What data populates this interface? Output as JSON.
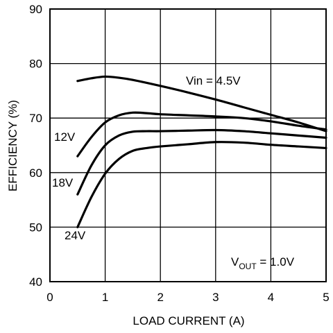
{
  "chart_data": {
    "type": "line",
    "xlabel": "LOAD CURRENT (A)",
    "ylabel": "EFFICIENCY (%)",
    "xlim": [
      0,
      5
    ],
    "ylim": [
      40,
      90
    ],
    "xticks": [
      0,
      1,
      2,
      3,
      4,
      5
    ],
    "yticks": [
      40,
      50,
      60,
      70,
      80,
      90
    ],
    "grid": true,
    "series": [
      {
        "name": "Vin = 4.5V",
        "x": [
          0.5,
          0.75,
          1.0,
          1.25,
          1.5,
          2.0,
          2.5,
          3.0,
          3.5,
          4.0,
          4.5,
          5.0
        ],
        "y": [
          76.8,
          77.3,
          77.6,
          77.4,
          77.0,
          75.9,
          74.7,
          73.4,
          72.0,
          70.6,
          69.2,
          67.6
        ]
      },
      {
        "name": "12V",
        "x": [
          0.5,
          0.75,
          1.0,
          1.25,
          1.5,
          1.75,
          2.0,
          2.5,
          3.0,
          3.5,
          4.0,
          4.5,
          5.0
        ],
        "y": [
          63.0,
          66.5,
          69.2,
          70.5,
          71.0,
          70.9,
          70.7,
          70.5,
          70.3,
          70.0,
          69.4,
          68.6,
          67.9
        ]
      },
      {
        "name": "18V",
        "x": [
          0.5,
          0.75,
          1.0,
          1.25,
          1.5,
          1.75,
          2.0,
          2.5,
          3.0,
          3.5,
          4.0,
          4.5,
          5.0
        ],
        "y": [
          56.0,
          61.3,
          65.0,
          66.8,
          67.5,
          67.6,
          67.6,
          67.7,
          67.8,
          67.6,
          67.2,
          66.8,
          66.4
        ]
      },
      {
        "name": "24V",
        "x": [
          0.5,
          0.75,
          1.0,
          1.25,
          1.5,
          1.75,
          2.0,
          2.5,
          3.0,
          3.5,
          4.0,
          4.5,
          5.0
        ],
        "y": [
          50.0,
          55.5,
          59.8,
          62.5,
          64.0,
          64.5,
          64.8,
          65.2,
          65.6,
          65.5,
          65.1,
          64.8,
          64.5
        ]
      }
    ],
    "annotation": {
      "main": "V",
      "sub": "OUT",
      "rest": " = 1.0V"
    }
  }
}
